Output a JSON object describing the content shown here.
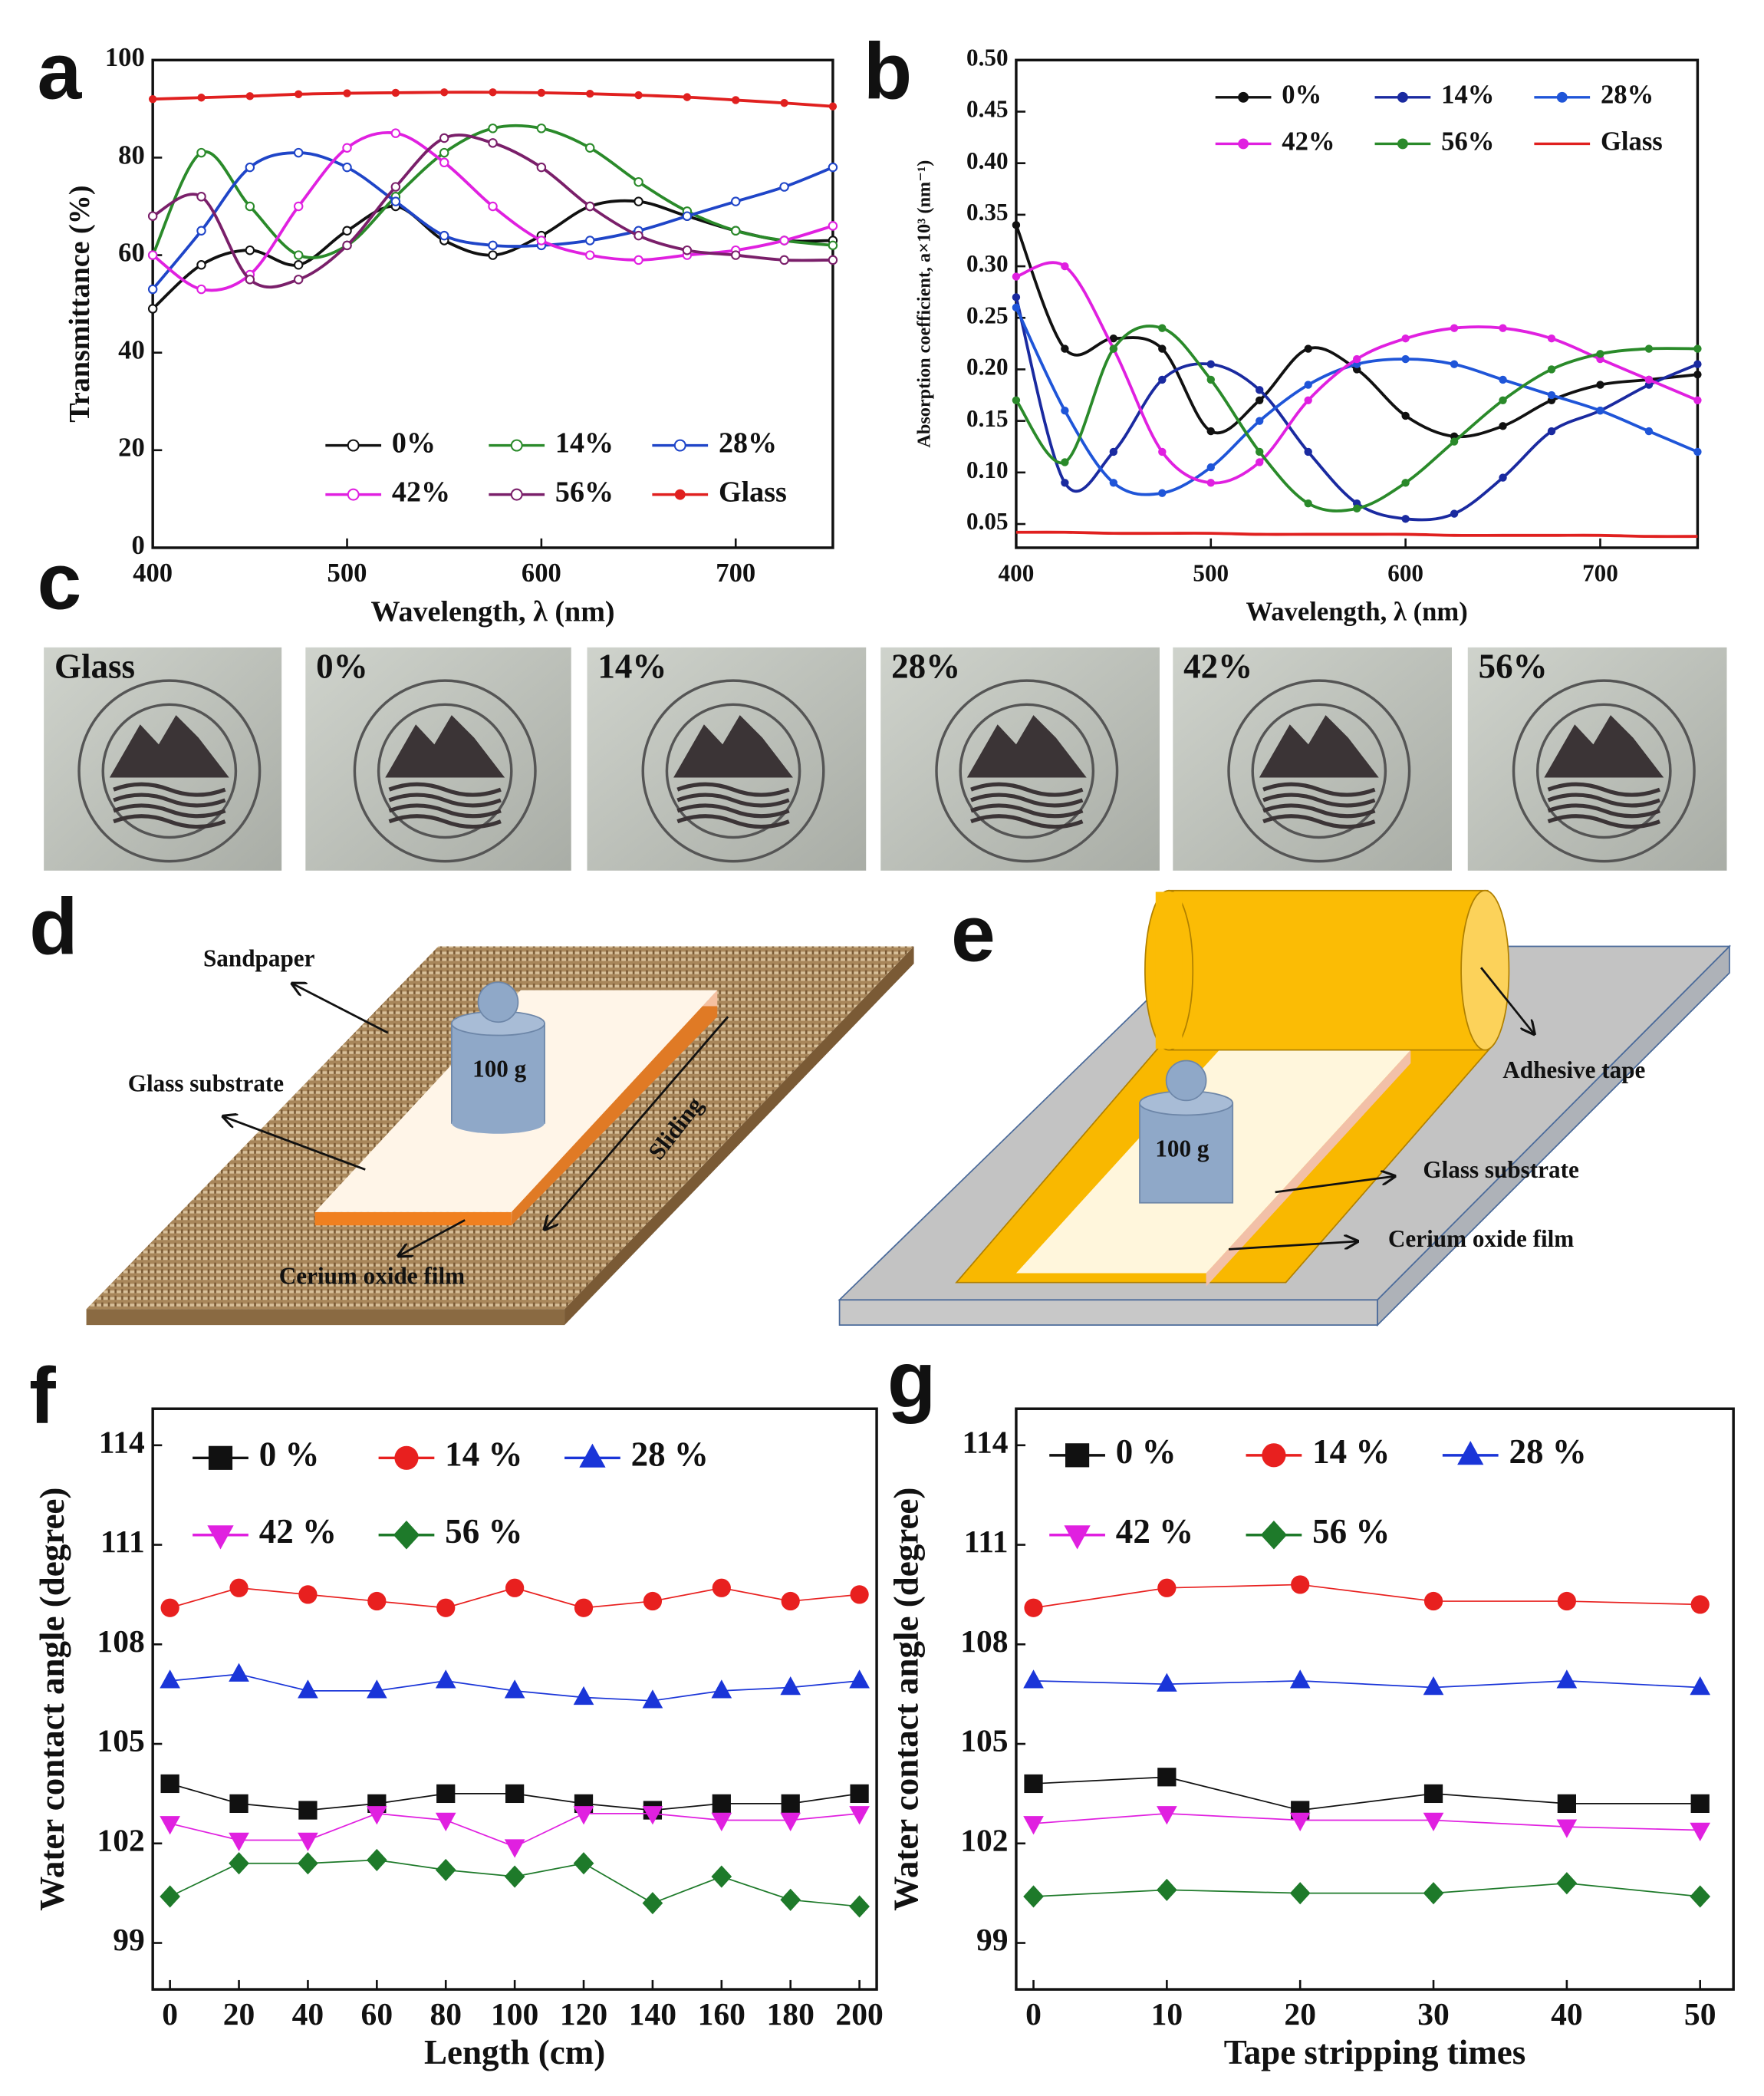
{
  "chart_data": [
    {
      "type": "line",
      "label": "a",
      "xlabel": "Wavelength, λ (nm)",
      "ylabel": "Transmittance (%)",
      "x": [
        400,
        425,
        450,
        475,
        500,
        525,
        550,
        575,
        600,
        625,
        650,
        675,
        700,
        725,
        750
      ],
      "xlim": [
        400,
        750
      ],
      "xticks": [
        400,
        500,
        600,
        700
      ],
      "ylim": [
        0,
        100
      ],
      "yticks": [
        0,
        20,
        40,
        60,
        80,
        100
      ],
      "series": [
        {
          "name": "0%",
          "color": "#111111",
          "marker": "circle-open",
          "values": [
            49,
            58,
            61,
            58,
            65,
            70,
            63,
            60,
            64,
            70,
            71,
            68,
            65,
            63,
            63
          ]
        },
        {
          "name": "14%",
          "color": "#2a8a2a",
          "marker": "circle-open",
          "values": [
            60,
            81,
            70,
            60,
            62,
            72,
            81,
            86,
            86,
            82,
            75,
            69,
            65,
            63,
            62
          ]
        },
        {
          "name": "28%",
          "color": "#1f45c8",
          "marker": "circle-open",
          "values": [
            53,
            65,
            78,
            81,
            78,
            71,
            64,
            62,
            62,
            63,
            65,
            68,
            71,
            74,
            78
          ]
        },
        {
          "name": "42%",
          "color": "#e020e0",
          "marker": "circle-open",
          "values": [
            60,
            53,
            56,
            70,
            82,
            85,
            79,
            70,
            63,
            60,
            59,
            60,
            61,
            63,
            66
          ]
        },
        {
          "name": "56%",
          "color": "#7a1f6a",
          "marker": "circle-open",
          "values": [
            68,
            72,
            55,
            55,
            62,
            74,
            84,
            83,
            78,
            70,
            64,
            61,
            60,
            59,
            59
          ]
        },
        {
          "name": "Glass",
          "color": "#e0201f",
          "marker": "dot",
          "values": [
            92,
            92.3,
            92.6,
            93,
            93.2,
            93.3,
            93.4,
            93.4,
            93.3,
            93.1,
            92.8,
            92.4,
            91.8,
            91.2,
            90.5
          ]
        }
      ]
    },
    {
      "type": "line",
      "label": "b",
      "xlabel": "Wavelength, λ (nm)",
      "ylabel": "Absorption coefficient, a×10³ (nm⁻¹)",
      "x": [
        400,
        425,
        450,
        475,
        500,
        525,
        550,
        575,
        600,
        625,
        650,
        675,
        700,
        725,
        750
      ],
      "xlim": [
        400,
        750
      ],
      "xticks": [
        400,
        500,
        600,
        700
      ],
      "ylim": [
        0.027,
        0.5
      ],
      "yticks": [
        0.05,
        {
          "value": 0.1,
          "label": "0.10"
        },
        0.15,
        {
          "value": 0.2,
          "label": "0.20"
        },
        0.25,
        {
          "value": 0.3,
          "label": "0.30"
        },
        0.35,
        {
          "value": 0.4,
          "label": "0.40"
        },
        0.45,
        {
          "value": 0.5,
          "label": "0.50"
        }
      ],
      "series": [
        {
          "name": "0%",
          "color": "#111111",
          "marker": "dot",
          "values": [
            0.34,
            0.22,
            0.23,
            0.22,
            0.14,
            0.17,
            0.22,
            0.2,
            0.155,
            0.135,
            0.145,
            0.17,
            0.185,
            0.19,
            0.195
          ]
        },
        {
          "name": "14%",
          "color": "#1a2aa0",
          "marker": "dot",
          "values": [
            0.27,
            0.09,
            0.12,
            0.19,
            0.205,
            0.18,
            0.12,
            0.07,
            0.055,
            0.06,
            0.095,
            0.14,
            0.16,
            0.185,
            0.205
          ]
        },
        {
          "name": "28%",
          "color": "#1f55d8",
          "marker": "dot",
          "values": [
            0.26,
            0.16,
            0.09,
            0.08,
            0.105,
            0.15,
            0.185,
            0.205,
            0.21,
            0.205,
            0.19,
            0.175,
            0.16,
            0.14,
            0.12
          ]
        },
        {
          "name": "42%",
          "color": "#e020e0",
          "marker": "dot",
          "values": [
            0.29,
            0.3,
            0.22,
            0.12,
            0.09,
            0.11,
            0.17,
            0.21,
            0.23,
            0.24,
            0.24,
            0.23,
            0.21,
            0.19,
            0.17
          ]
        },
        {
          "name": "56%",
          "color": "#2a8a2a",
          "marker": "dot",
          "values": [
            0.17,
            0.11,
            0.22,
            0.24,
            0.19,
            0.12,
            0.07,
            0.065,
            0.09,
            0.13,
            0.17,
            0.2,
            0.215,
            0.22,
            0.22
          ]
        },
        {
          "name": "Glass",
          "color": "#e0201f",
          "marker": "none",
          "values": [
            0.042,
            0.042,
            0.041,
            0.041,
            0.041,
            0.04,
            0.04,
            0.04,
            0.04,
            0.039,
            0.039,
            0.039,
            0.039,
            0.038,
            0.038
          ]
        }
      ]
    },
    {
      "type": "line",
      "label": "f",
      "xlabel": "Length (cm)",
      "ylabel": "Water contact angle (degree)",
      "x": [
        0,
        20,
        40,
        60,
        80,
        100,
        120,
        140,
        160,
        180,
        200
      ],
      "xlim": [
        -5,
        205
      ],
      "xticks": [
        0,
        20,
        40,
        60,
        80,
        100,
        120,
        140,
        160,
        180,
        200
      ],
      "ylim": [
        97.6,
        115.1
      ],
      "yticks": [
        99,
        102,
        105,
        108,
        111,
        114
      ],
      "series": [
        {
          "name": "0 %",
          "color": "#111111",
          "marker": "square",
          "values": [
            103.8,
            103.2,
            103.0,
            103.2,
            103.5,
            103.5,
            103.2,
            103.0,
            103.2,
            103.2,
            103.5
          ]
        },
        {
          "name": "14 %",
          "color": "#e8201f",
          "marker": "circle",
          "values": [
            109.1,
            109.7,
            109.5,
            109.3,
            109.1,
            109.7,
            109.1,
            109.3,
            109.7,
            109.3,
            109.5
          ]
        },
        {
          "name": "28 %",
          "color": "#1a35d8",
          "marker": "triangle",
          "values": [
            106.9,
            107.1,
            106.6,
            106.6,
            106.9,
            106.6,
            106.4,
            106.3,
            106.6,
            106.7,
            106.9
          ]
        },
        {
          "name": "42 %",
          "color": "#e020e0",
          "marker": "triangle-down",
          "values": [
            102.6,
            102.1,
            102.1,
            102.9,
            102.7,
            101.9,
            102.9,
            102.9,
            102.7,
            102.7,
            102.9
          ]
        },
        {
          "name": "56 %",
          "color": "#1e7a2a",
          "marker": "diamond",
          "values": [
            100.4,
            101.4,
            101.4,
            101.5,
            101.2,
            101.0,
            101.4,
            100.2,
            101.0,
            100.3,
            100.1
          ]
        }
      ]
    },
    {
      "type": "line",
      "label": "g",
      "xlabel": "Tape stripping times",
      "ylabel": "Water contact angle (degree)",
      "x": [
        0,
        10,
        20,
        30,
        40,
        50
      ],
      "xlim": [
        -1.3,
        52.5
      ],
      "xticks": [
        0,
        10,
        20,
        30,
        40,
        50
      ],
      "ylim": [
        97.6,
        115.1
      ],
      "yticks": [
        99,
        102,
        105,
        108,
        111,
        114
      ],
      "series": [
        {
          "name": "0 %",
          "color": "#111111",
          "marker": "square",
          "values": [
            103.8,
            104.0,
            103.0,
            103.5,
            103.2,
            103.2
          ]
        },
        {
          "name": "14 %",
          "color": "#e8201f",
          "marker": "circle",
          "values": [
            109.1,
            109.7,
            109.8,
            109.3,
            109.3,
            109.2
          ]
        },
        {
          "name": "28 %",
          "color": "#1a35d8",
          "marker": "triangle",
          "values": [
            106.9,
            106.8,
            106.9,
            106.7,
            106.9,
            106.7
          ]
        },
        {
          "name": "42 %",
          "color": "#e020e0",
          "marker": "triangle-down",
          "values": [
            102.6,
            102.9,
            102.7,
            102.7,
            102.5,
            102.4
          ]
        },
        {
          "name": "56 %",
          "color": "#1e7a2a",
          "marker": "diamond",
          "values": [
            100.4,
            100.6,
            100.5,
            100.5,
            100.8,
            100.4
          ]
        }
      ]
    }
  ],
  "panel_c": {
    "label": "c",
    "photos": [
      "Glass",
      "0%",
      "14%",
      "28%",
      "42%",
      "56%"
    ]
  },
  "panel_d": {
    "label": "d",
    "sandpaper": "Sandpaper",
    "glass": "Glass substrate",
    "weight": "100 g",
    "sliding": "Sliding",
    "film": "Cerium oxide film"
  },
  "panel_e": {
    "label": "e",
    "tape": "Adhesive tape",
    "glass": "Glass substrate",
    "weight": "100 g",
    "film": "Cerium oxide film"
  }
}
